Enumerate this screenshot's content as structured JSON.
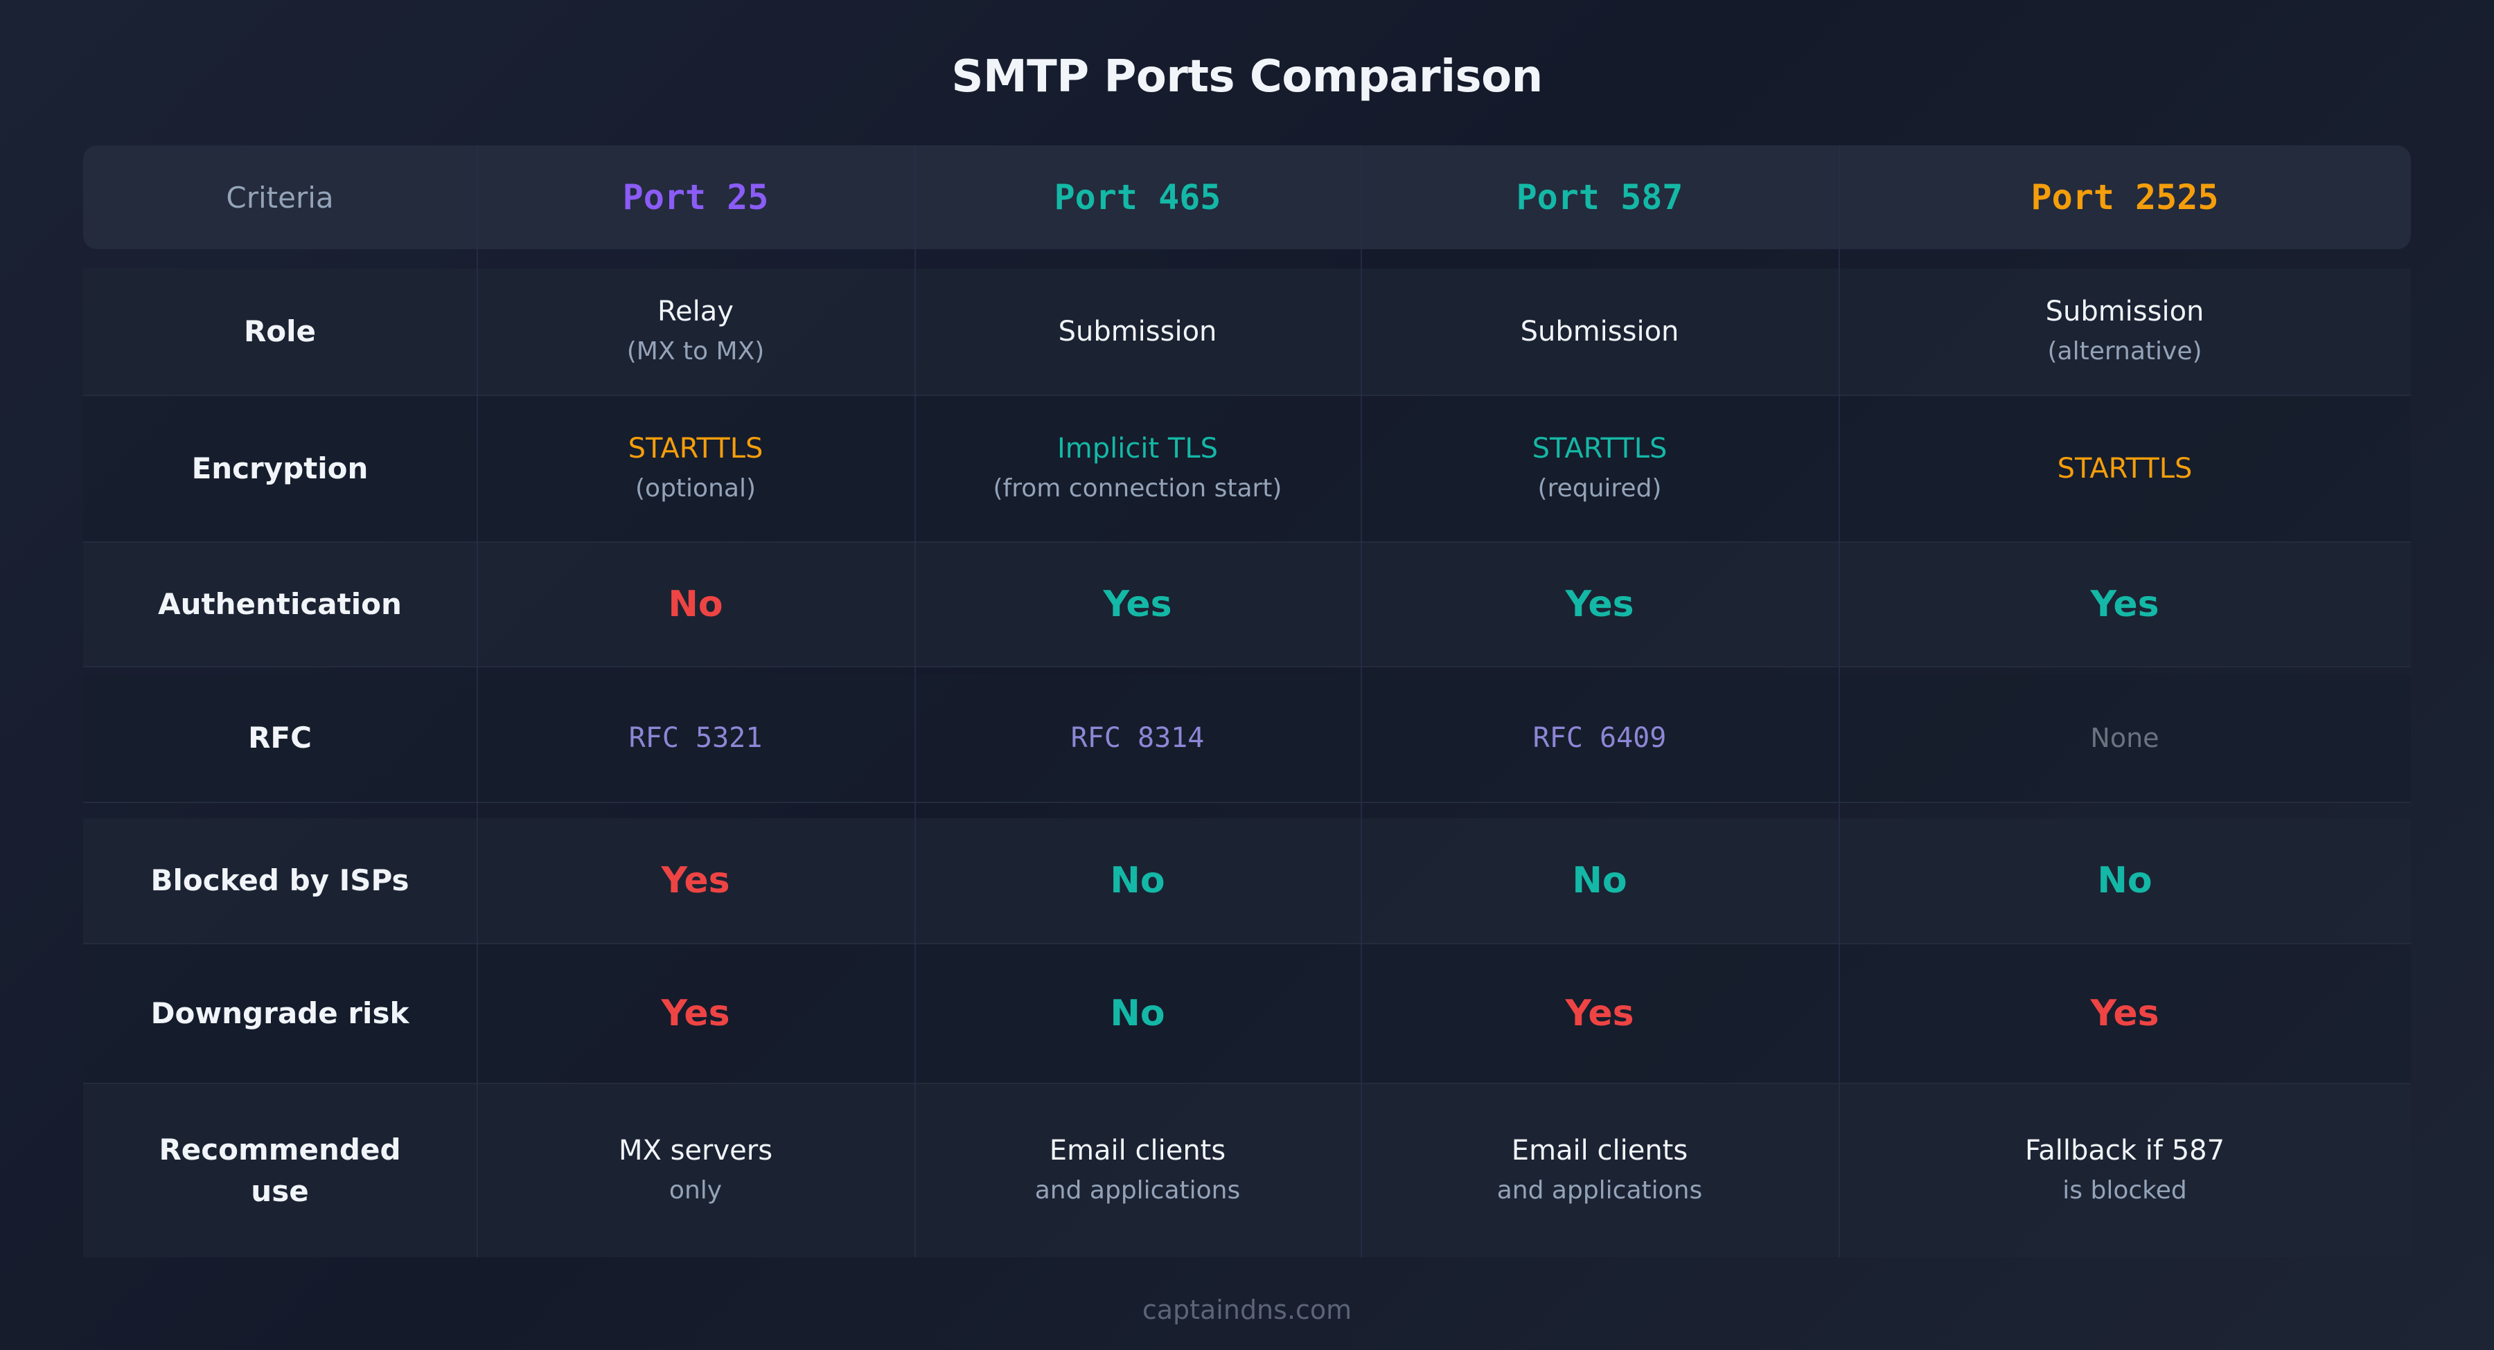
{
  "title": "SMTP Ports Comparison",
  "colors": {
    "purple": "#8b5cf6",
    "teal": "#14b8a6",
    "orange": "#f59e0b",
    "red": "#ef4444",
    "rfc": "#8e86d6",
    "muted": "#94a3b8",
    "none": "#6b7280"
  },
  "header": {
    "criteria": "Criteria",
    "ports": [
      "Port 25",
      "Port 465",
      "Port 587",
      "Port 2525"
    ]
  },
  "rows": {
    "role": {
      "label": "Role",
      "values": [
        {
          "main": "Relay",
          "sub": "(MX to MX)"
        },
        {
          "main": "Submission"
        },
        {
          "main": "Submission"
        },
        {
          "main": "Submission",
          "sub": "(alternative)"
        }
      ]
    },
    "encryption": {
      "label": "Encryption",
      "values": [
        {
          "main": "STARTTLS",
          "sub": "(optional)"
        },
        {
          "main": "Implicit TLS",
          "sub": "(from connection start)"
        },
        {
          "main": "STARTTLS",
          "sub": "(required)"
        },
        {
          "main": "STARTTLS"
        }
      ]
    },
    "authentication": {
      "label": "Authentication",
      "values": [
        "No",
        "Yes",
        "Yes",
        "Yes"
      ]
    },
    "rfc": {
      "label": "RFC",
      "values": [
        "RFC 5321",
        "RFC 8314",
        "RFC 6409",
        "None"
      ]
    },
    "blocked": {
      "label": "Blocked by ISPs",
      "values": [
        "Yes",
        "No",
        "No",
        "No"
      ]
    },
    "downgrade": {
      "label": "Downgrade risk",
      "values": [
        "Yes",
        "No",
        "Yes",
        "Yes"
      ]
    },
    "recommended": {
      "label_line1": "Recommended",
      "label_line2": "use",
      "values": [
        {
          "main": "MX servers",
          "sub": "only"
        },
        {
          "main": "Email clients",
          "sub": "and applications"
        },
        {
          "main": "Email clients",
          "sub": "and applications"
        },
        {
          "main": "Fallback if 587",
          "sub": "is blocked"
        }
      ]
    }
  },
  "footer": "captaindns.com"
}
